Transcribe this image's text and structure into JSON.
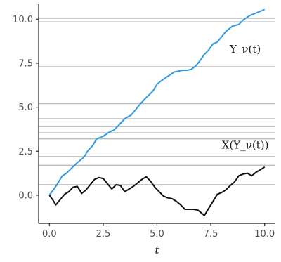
{
  "chart_data": {
    "type": "line",
    "title": "",
    "xlabel": "t",
    "ylabel": "",
    "xlim": [
      -0.5,
      10.5
    ],
    "ylim": [
      -1.6,
      10.85
    ],
    "xticks": [
      0,
      2.5,
      5,
      7.5,
      10
    ],
    "xtick_labels": [
      "0.0",
      "2.5",
      "5.0",
      "7.5",
      "10.0"
    ],
    "yticks": [
      0,
      2.5,
      5,
      7.5,
      10
    ],
    "ytick_labels": [
      "0.0",
      "2.5",
      "5.0",
      "7.5",
      "10.0"
    ],
    "grid": false,
    "legend": "none",
    "reference_lines_y": [
      0.6,
      1.7,
      2.2,
      3.2,
      3.55,
      3.9,
      4.35,
      5.2,
      7.3,
      9.85,
      10.05
    ],
    "annotations": [
      {
        "text": "Y_ν(t)",
        "at": [
          9.1,
          8.1
        ]
      },
      {
        "text": "X(Y_ν(t))",
        "at": [
          9.1,
          2.65
        ]
      }
    ],
    "series": [
      {
        "color": "#3399dd",
        "x": [
          0,
          0.3,
          0.6,
          0.8,
          1.0,
          1.3,
          1.6,
          1.8,
          2.0,
          2.2,
          2.5,
          2.8,
          3.0,
          3.2,
          3.5,
          3.8,
          4.0,
          4.2,
          4.5,
          4.8,
          5.0,
          5.2,
          5.5,
          5.8,
          6.0,
          6.2,
          6.4,
          6.6,
          6.8,
          7.0,
          7.2,
          7.4,
          7.6,
          7.8,
          8.0,
          8.2,
          8.5,
          8.8,
          9.0,
          9.3,
          9.6,
          9.8,
          10.0
        ],
        "y": [
          0.0,
          0.5,
          1.1,
          1.25,
          1.5,
          1.85,
          2.15,
          2.55,
          2.8,
          3.2,
          3.35,
          3.6,
          3.7,
          3.95,
          4.35,
          4.55,
          4.85,
          5.15,
          5.55,
          5.9,
          6.3,
          6.5,
          6.75,
          7.0,
          7.05,
          7.1,
          7.1,
          7.15,
          7.35,
          7.65,
          8.0,
          8.25,
          8.6,
          8.7,
          9.0,
          9.3,
          9.6,
          9.7,
          9.95,
          10.2,
          10.35,
          10.45,
          10.55
        ]
      },
      {
        "color": "#111111",
        "x": [
          0,
          0.15,
          0.3,
          0.5,
          0.7,
          0.9,
          1.1,
          1.3,
          1.5,
          1.7,
          1.9,
          2.1,
          2.3,
          2.5,
          2.7,
          2.9,
          3.1,
          3.3,
          3.5,
          3.7,
          3.9,
          4.1,
          4.3,
          4.5,
          4.7,
          4.9,
          5.1,
          5.3,
          5.5,
          5.7,
          5.9,
          6.1,
          6.3,
          6.5,
          6.7,
          6.9,
          7.1,
          7.2,
          7.4,
          7.6,
          7.8,
          8.0,
          8.2,
          8.4,
          8.6,
          8.8,
          9.0,
          9.2,
          9.4,
          9.6,
          9.8,
          10.0
        ],
        "y": [
          0.0,
          -0.25,
          -0.55,
          -0.25,
          0.05,
          0.2,
          0.45,
          0.5,
          0.1,
          0.3,
          0.6,
          0.9,
          1.0,
          0.95,
          0.65,
          0.35,
          0.6,
          0.55,
          0.2,
          0.35,
          0.5,
          0.7,
          0.9,
          1.05,
          0.8,
          0.45,
          0.2,
          -0.05,
          -0.15,
          -0.2,
          -0.35,
          -0.55,
          -0.8,
          -0.8,
          -0.8,
          -0.85,
          -1.05,
          -1.15,
          -0.75,
          -0.35,
          0.05,
          0.15,
          0.3,
          0.55,
          0.75,
          1.1,
          1.2,
          1.25,
          1.1,
          1.3,
          1.45,
          1.6
        ]
      }
    ]
  }
}
